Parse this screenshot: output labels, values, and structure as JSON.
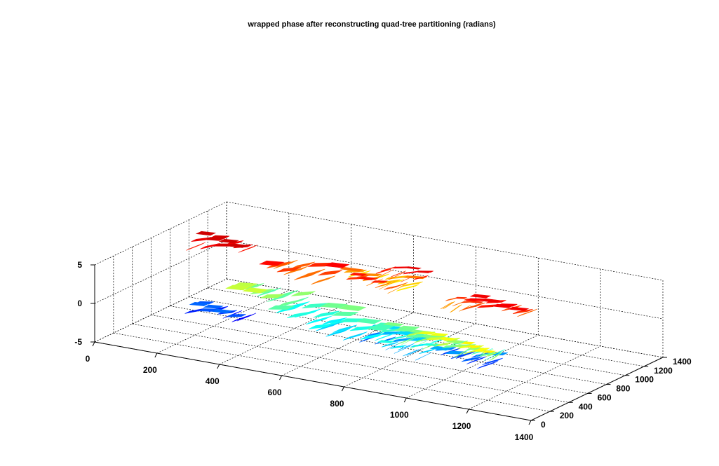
{
  "chart_data": {
    "type": "surface",
    "title": "wrapped phase after reconstructing quad-tree partitioning (radians)",
    "xlabel": "",
    "ylabel": "",
    "zlabel": "",
    "xlim": [
      0,
      1400
    ],
    "ylim": [
      0,
      1400
    ],
    "zlim": [
      -5,
      5
    ],
    "x_ticks": [
      0,
      200,
      400,
      600,
      800,
      1000,
      1200,
      1400
    ],
    "y_ticks": [
      0,
      200,
      400,
      600,
      800,
      1000,
      1200,
      1400
    ],
    "z_ticks": [
      5,
      0,
      -5
    ],
    "grid": true,
    "colormap": "jet",
    "colormap_stops": [
      "#00008f",
      "#0000ff",
      "#00ffff",
      "#ffff00",
      "#ff0000",
      "#800000"
    ],
    "patches": [
      {
        "x": [
          40,
          220
        ],
        "y": [
          840,
          1000
        ],
        "z": 3.0
      },
      {
        "x": [
          300,
          520
        ],
        "y": [
          760,
          980
        ],
        "z": 2.2
      },
      {
        "x": [
          560,
          720
        ],
        "y": [
          820,
          940
        ],
        "z": 2.0
      },
      {
        "x": [
          480,
          720
        ],
        "y": [
          1020,
          1140
        ],
        "z": 1.2
      },
      {
        "x": [
          600,
          760
        ],
        "y": [
          1000,
          1080
        ],
        "z": 2.6
      },
      {
        "x": [
          880,
          1000
        ],
        "y": [
          760,
          840
        ],
        "z": 1.8
      },
      {
        "x": [
          960,
          1160
        ],
        "y": [
          720,
          860
        ],
        "z": 2.4
      },
      {
        "x": [
          240,
          460
        ],
        "y": [
          600,
          820
        ],
        "z": -0.5
      },
      {
        "x": [
          400,
          640
        ],
        "y": [
          520,
          760
        ],
        "z": -1.2
      },
      {
        "x": [
          560,
          780
        ],
        "y": [
          420,
          640
        ],
        "z": -1.6
      },
      {
        "x": [
          680,
          880
        ],
        "y": [
          560,
          720
        ],
        "z": -2.6
      },
      {
        "x": [
          760,
          960
        ],
        "y": [
          460,
          600
        ],
        "z": -1.2
      },
      {
        "x": [
          920,
          1120
        ],
        "y": [
          520,
          680
        ],
        "z": -3.0
      },
      {
        "x": [
          1000,
          1160
        ],
        "y": [
          380,
          520
        ],
        "z": -1.0
      },
      {
        "x": [
          880,
          1040
        ],
        "y": [
          300,
          440
        ],
        "z": -0.2
      },
      {
        "x": [
          120,
          300
        ],
        "y": [
          560,
          720
        ],
        "z": -3.6
      },
      {
        "x": [
          1080,
          1200
        ],
        "y": [
          240,
          360
        ],
        "z": 0.0
      },
      {
        "x": [
          800,
          960
        ],
        "y": [
          360,
          480
        ],
        "z": -2.0
      }
    ]
  }
}
